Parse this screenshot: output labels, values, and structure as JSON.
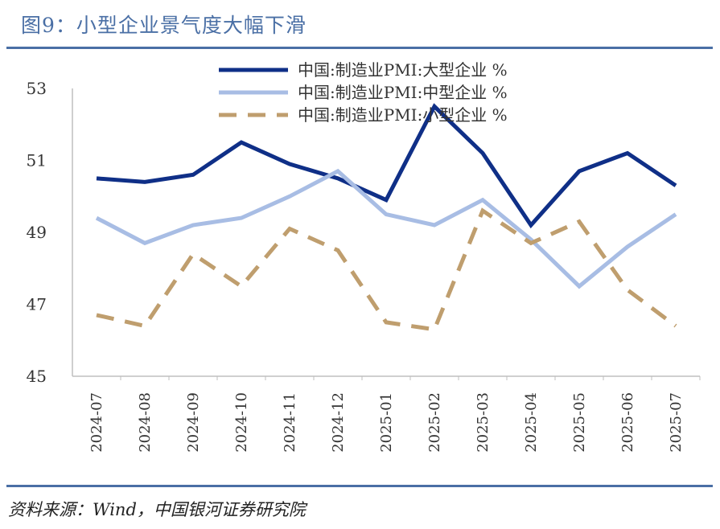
{
  "header": {
    "title": "图9：小型企业景气度大幅下滑"
  },
  "footer": {
    "source": "资料来源：Wind，中国银河证券研究院"
  },
  "chart_data": {
    "type": "line",
    "categories": [
      "2024-07",
      "2024-08",
      "2024-09",
      "2024-10",
      "2024-11",
      "2024-12",
      "2025-01",
      "2025-02",
      "2025-03",
      "2025-04",
      "2025-05",
      "2025-06",
      "2025-07"
    ],
    "ylim": [
      45,
      53
    ],
    "yticks": [
      45,
      47,
      49,
      51,
      53
    ],
    "grid": false,
    "legend": "top",
    "series": [
      {
        "name": "中国:制造业PMI:大型企业 %",
        "color": "#0f2f87",
        "style": "solid",
        "values": [
          50.5,
          50.4,
          50.6,
          51.5,
          50.9,
          50.5,
          49.9,
          52.5,
          51.2,
          49.2,
          50.7,
          51.2,
          50.3
        ]
      },
      {
        "name": "中国:制造业PMI:中型企业 %",
        "color": "#a8bde4",
        "style": "solid",
        "values": [
          49.4,
          48.7,
          49.2,
          49.4,
          50.0,
          50.7,
          49.5,
          49.2,
          49.9,
          48.8,
          47.5,
          48.6,
          49.5
        ]
      },
      {
        "name": "中国:制造业PMI:小型企业 %",
        "color": "#bf9e6e",
        "style": "dashed",
        "values": [
          46.7,
          46.4,
          48.4,
          47.5,
          49.1,
          48.5,
          46.5,
          46.3,
          49.6,
          48.7,
          49.3,
          47.4,
          46.4
        ]
      }
    ]
  }
}
